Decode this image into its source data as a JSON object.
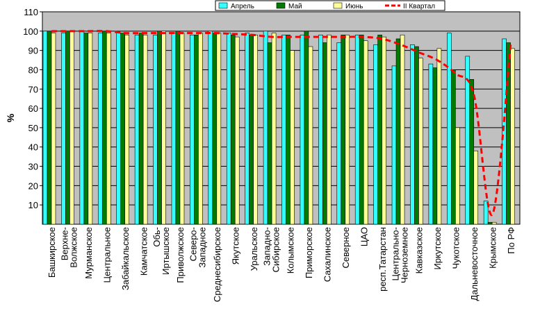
{
  "chart_data": {
    "type": "bar",
    "ylabel": "%",
    "ylim": [
      0,
      110
    ],
    "yticks": [
      10,
      20,
      30,
      40,
      50,
      60,
      70,
      80,
      90,
      100,
      110
    ],
    "grid": true,
    "legend_position": "top-right",
    "categories": [
      "Башкирское",
      "Верхне-Волжское",
      "Мурманское",
      "Центральное",
      "Забайкальское",
      "Камчатское",
      "Обь-Иртышское",
      "Приволжское",
      "Северо-Западное",
      "Среднесибирское",
      "Якутское",
      "Уральское",
      "Западно-Сибирское",
      "Колымское",
      "Приморское",
      "Сахалинское",
      "Северное",
      "ЦАО",
      "респ.Татарстан",
      "Центрально-Черноземное",
      "Кавказское",
      "Иркутское",
      "Чукотское",
      "Дальневосточное",
      "Крымское",
      "По РФ"
    ],
    "series": [
      {
        "name": "Апрель",
        "kind": "bar",
        "color": "#33ffff",
        "values": [
          100,
          99,
          100,
          99,
          99,
          98,
          98,
          99,
          98,
          100,
          99,
          99,
          100,
          98,
          98,
          98,
          94,
          98,
          93,
          82,
          93,
          83,
          99,
          87,
          12,
          96
        ]
      },
      {
        "name": "Май",
        "kind": "bar",
        "color": "#007a00",
        "values": [
          100,
          100,
          99,
          100,
          99,
          99,
          100,
          100,
          98,
          99,
          98,
          98,
          94,
          98,
          100,
          94,
          98,
          98,
          98,
          96,
          92,
          81,
          80,
          75,
          1,
          94
        ]
      },
      {
        "name": "Июнь",
        "kind": "bar",
        "color": "#ffff99",
        "values": [
          99,
          100,
          99,
          99,
          98,
          98,
          100,
          99,
          99,
          99,
          97,
          98,
          99,
          90,
          92,
          98,
          98,
          95,
          97,
          98,
          86,
          91,
          50,
          38,
          1,
          91
        ]
      },
      {
        "name": "II Квартал",
        "kind": "line",
        "color": "#ff0000",
        "values": [
          100,
          100,
          100,
          100,
          99,
          99,
          99,
          99,
          99,
          99,
          98.5,
          98,
          97,
          97,
          97,
          97,
          97,
          97,
          96,
          93,
          89,
          85,
          78,
          67,
          5,
          93
        ]
      }
    ]
  }
}
